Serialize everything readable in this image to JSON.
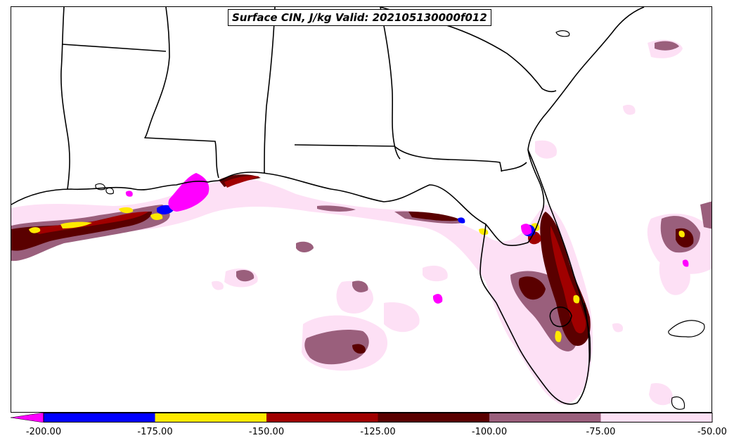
{
  "title": "Surface CIN, J/kg Valid: 202105130000f012",
  "colorbar": {
    "segments": [
      {
        "from": -200,
        "to": -175,
        "color": "#0000ff"
      },
      {
        "from": -175,
        "to": -150,
        "color": "#ffea00"
      },
      {
        "from": -150,
        "to": -125,
        "color": "#a00000"
      },
      {
        "from": -125,
        "to": -100,
        "color": "#5a0000"
      },
      {
        "from": -100,
        "to": -75,
        "color": "#9a5f7c"
      },
      {
        "from": -75,
        "to": -50,
        "color": "#fde0f5"
      }
    ],
    "under_color": "#ff00ff",
    "tick_labels": [
      "-200.00",
      "-175.00",
      "-150.00",
      "-125.00",
      "-100.00",
      "-75.00",
      "-50.00"
    ]
  }
}
